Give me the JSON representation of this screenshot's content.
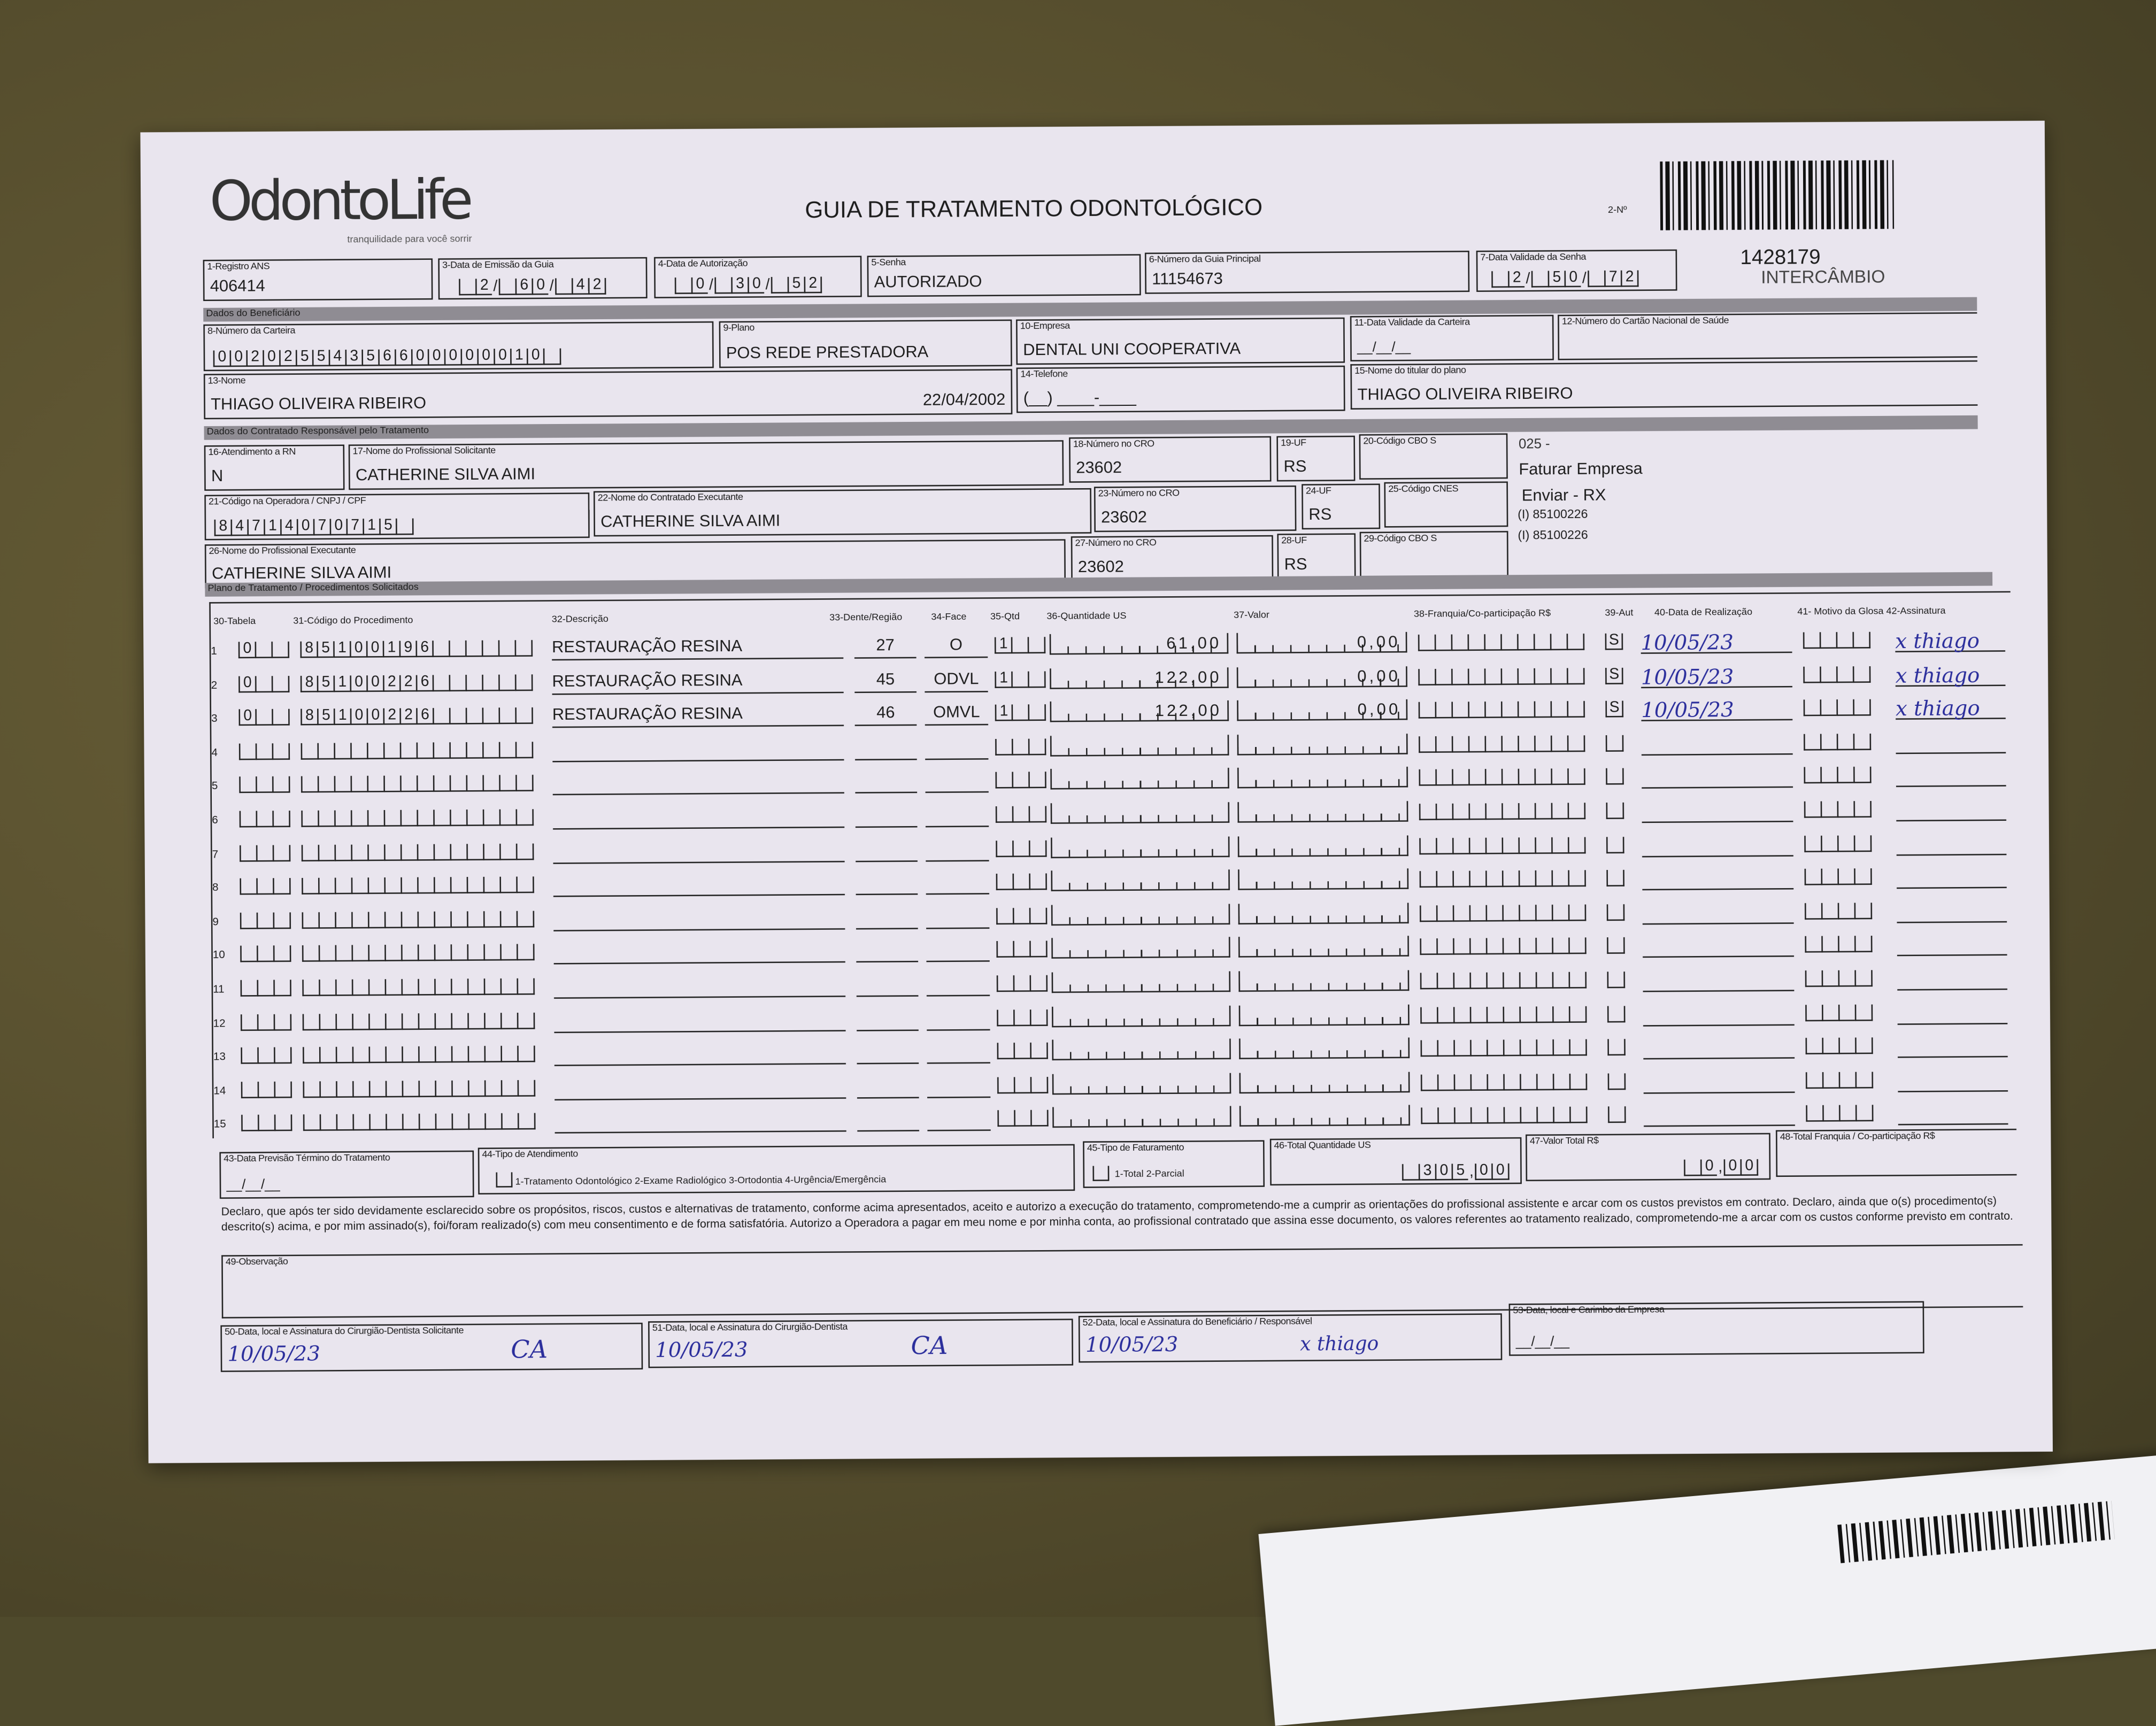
{
  "header": {
    "logo": "OdontoLife",
    "logo_tagline": "tranquilidade para você sorrir",
    "title": "GUIA DE TRATAMENTO ODONTOLÓGICO",
    "no_label": "2-Nº",
    "guia_number": "1428179",
    "tag": "INTERCÂMBIO"
  },
  "fields": {
    "f1": {
      "label": "1-Registro ANS",
      "value": "406414"
    },
    "f3": {
      "label": "3-Data de Emissão da Guia",
      "value": "2/60/42"
    },
    "f4": {
      "label": "4-Data de Autorização",
      "value": "0/30/52"
    },
    "f5": {
      "label": "5-Senha",
      "value": "AUTORIZADO"
    },
    "f6": {
      "label": "6-Número da Guia Principal",
      "value": "11154673"
    },
    "f7": {
      "label": "7-Data Validade da Senha",
      "value": "2/50/72"
    },
    "sec1": "Dados do Beneficiário",
    "f8": {
      "label": "8-Número da Carteira",
      "value": "00202554356600000010"
    },
    "f9": {
      "label": "9-Plano",
      "value": "POS REDE PRESTADORA"
    },
    "f10": {
      "label": "10-Empresa",
      "value": "DENTAL UNI  COOPERATIVA"
    },
    "f11": {
      "label": "11-Data Validade da Carteira",
      "value": "__/__/__"
    },
    "f12": {
      "label": "12-Número do Cartão Nacional de Saúde",
      "value": ""
    },
    "f13": {
      "label": "13-Nome",
      "value": "THIAGO OLIVEIRA RIBEIRO",
      "birth": "22/04/2002"
    },
    "f14": {
      "label": "14-Telefone",
      "value": "(__) ____-____"
    },
    "f15": {
      "label": "15-Nome do titular do plano",
      "value": "THIAGO OLIVEIRA RIBEIRO"
    },
    "sec2": "Dados do Contratado Responsável pelo Tratamento",
    "f16": {
      "label": "16-Atendimento a RN",
      "value": "N"
    },
    "f17": {
      "label": "17-Nome do Profissional Solicitante",
      "value": "CATHERINE SILVA AIMI"
    },
    "f18": {
      "label": "18-Número no CRO",
      "value": "23602"
    },
    "f19": {
      "label": "19-UF",
      "value": "RS"
    },
    "f20": {
      "label": "20-Código CBO S",
      "value": ""
    },
    "f21": {
      "label": "21-Código na Operadora / CNPJ / CPF",
      "value": "84714070715"
    },
    "f22": {
      "label": "22-Nome do Contratado Executante",
      "value": "CATHERINE SILVA AIMI"
    },
    "f23": {
      "label": "23-Número no CRO",
      "value": "23602"
    },
    "f24": {
      "label": "24-UF",
      "value": "RS"
    },
    "f25": {
      "label": "25-Código CNES",
      "value": ""
    },
    "f26": {
      "label": "26-Nome do Profissional Executante",
      "value": "CATHERINE SILVA AIMI"
    },
    "f27": {
      "label": "27-Número no CRO",
      "value": "23602"
    },
    "f28": {
      "label": "28-UF",
      "value": "RS"
    },
    "f29": {
      "label": "29-Código CBO S",
      "value": ""
    },
    "side": {
      "l1": "025 -",
      "l2": "Faturar Empresa",
      "l3": "Enviar - RX",
      "l4": "(I) 85100226",
      "l5": "(I) 85100226"
    },
    "sec3": "Plano de Tratamento / Procedimentos Solicitados"
  },
  "table": {
    "headers": [
      "30-Tabela",
      "31-Código do Procedimento",
      "32-Descrição",
      "33-Dente/Região",
      "34-Face",
      "35-Qtd",
      "36-Quantidade US",
      "37-Valor",
      "38-Franquia/Co-participação R$",
      "39-Aut",
      "40-Data de Realização",
      "41- Motivo da Glosa  42-Assinatura"
    ],
    "rows": [
      {
        "n": "1",
        "tabela": "0",
        "codigo": "85100196",
        "descricao": "RESTAURAÇÃO RESINA",
        "dente": "27",
        "face": "O",
        "qtd": "1",
        "qtd_us": "61,00",
        "valor": "0,00",
        "franquia": "",
        "aut": "S",
        "data": "10/05/23",
        "assinatura": "x thiago"
      },
      {
        "n": "2",
        "tabela": "0",
        "codigo": "85100226",
        "descricao": "RESTAURAÇÃO RESINA",
        "dente": "45",
        "face": "ODVL",
        "qtd": "1",
        "qtd_us": "122,00",
        "valor": "0,00",
        "franquia": "",
        "aut": "S",
        "data": "10/05/23",
        "assinatura": "x thiago"
      },
      {
        "n": "3",
        "tabela": "0",
        "codigo": "85100226",
        "descricao": "RESTAURAÇÃO RESINA",
        "dente": "46",
        "face": "OMVL",
        "qtd": "1",
        "qtd_us": "122,00",
        "valor": "0,00",
        "franquia": "",
        "aut": "S",
        "data": "10/05/23",
        "assinatura": "x thiago"
      },
      {
        "n": "4"
      },
      {
        "n": "5"
      },
      {
        "n": "6"
      },
      {
        "n": "7"
      },
      {
        "n": "8"
      },
      {
        "n": "9"
      },
      {
        "n": "10"
      },
      {
        "n": "11"
      },
      {
        "n": "12"
      },
      {
        "n": "13"
      },
      {
        "n": "14"
      },
      {
        "n": "15"
      }
    ]
  },
  "footer": {
    "f43": {
      "label": "43-Data Previsão Término do Tratamento",
      "value": "__/__/__"
    },
    "f44": {
      "label": "44-Tipo de Atendimento",
      "options": "1-Tratamento Odontológico  2-Exame Radiológico  3-Ortodontia  4-Urgência/Emergência"
    },
    "f45": {
      "label": "45-Tipo de Faturamento",
      "options": "1-Total  2-Parcial"
    },
    "f46": {
      "label": "46-Total Quantidade US",
      "value": "305,00"
    },
    "f47": {
      "label": "47-Valor Total R$",
      "value": "0,00"
    },
    "f48": {
      "label": "48-Total Franquia / Co-participação R$",
      "value": ""
    },
    "declaration": "Declaro, que após ter sido devidamente esclarecido sobre os propósitos, riscos, custos e alternativas de tratamento, conforme acima apresentados, aceito e autorizo a execução do tratamento, comprometendo-me a cumprir as orientações do profissional assistente e arcar com os custos previstos em contrato. Declaro, ainda que o(s) procedimento(s) descrito(s) acima, e por mim assinado(s), foi/foram realizado(s) com meu consentimento e de forma satisfatória. Autorizo a Operadora a pagar em meu nome e por minha conta, ao profissional contratado que assina esse documento, os valores referentes ao tratamento realizado, comprometendo-me a arcar com os custos conforme previsto em contrato.",
    "f49": {
      "label": "49-Observação",
      "value": ""
    },
    "f50": {
      "label": "50-Data, local e Assinatura do Cirurgião-Dentista Solicitante",
      "date": "10/05/23",
      "sign": "CA"
    },
    "f51": {
      "label": "51-Data, local e Assinatura do Cirurgião-Dentista",
      "date": "10/05/23",
      "sign": "CA"
    },
    "f52": {
      "label": "52-Data, local e Assinatura do Beneficiário / Responsável",
      "date": "10/05/23",
      "sign": "x thiago"
    },
    "f53": {
      "label": "53-Data, local e Carimbo da Empresa",
      "value": "__/__/__"
    }
  },
  "colors": {
    "paper": "#e9e5ee",
    "background": "#4f4a2c",
    "ink": "#2b2e9c",
    "section_bar": "#8f8c93"
  }
}
